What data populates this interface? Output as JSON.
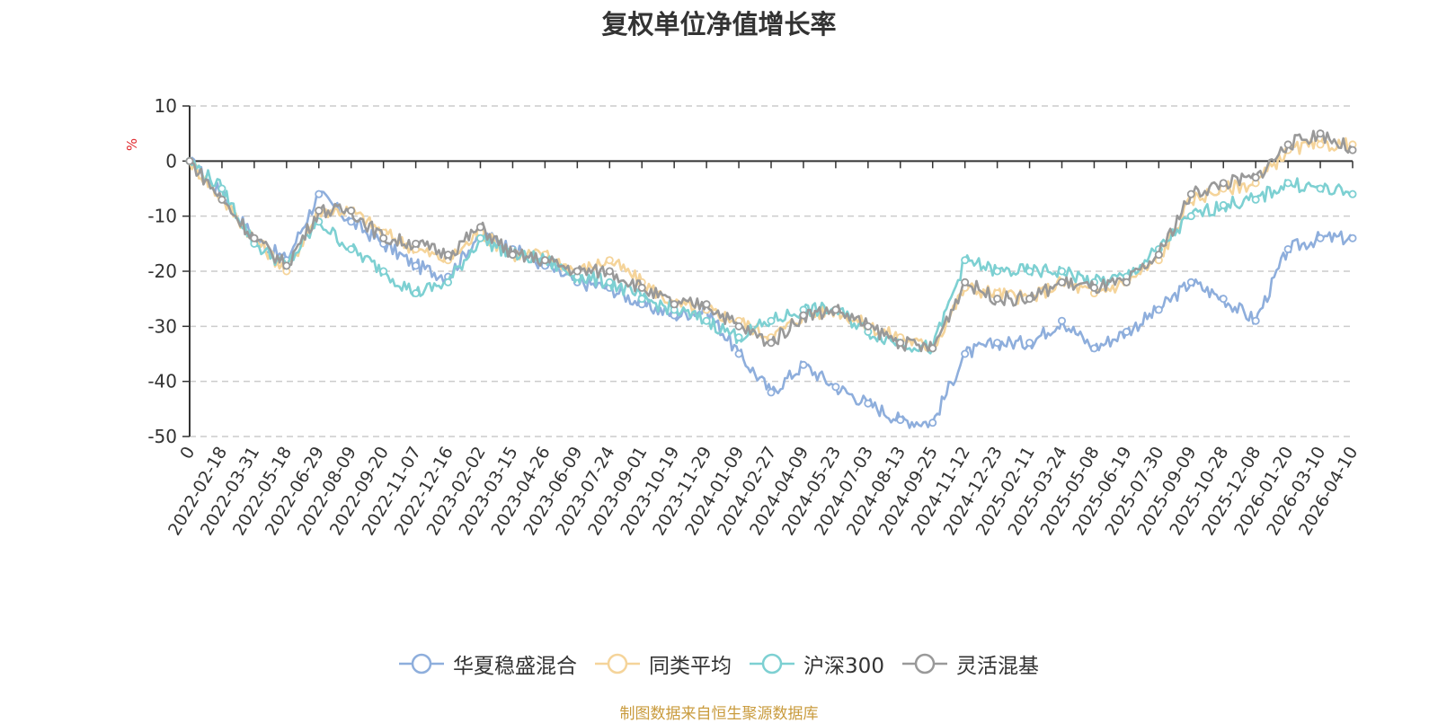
{
  "chart_data": {
    "type": "line",
    "title": "复权单位净值增长率",
    "ylabel": "%",
    "ylim": [
      -50,
      10
    ],
    "yticks": [
      10,
      0,
      -10,
      -20,
      -30,
      -40,
      -50
    ],
    "grid": true,
    "legend_position": "bottom",
    "categories": [
      "0",
      "2022-02-18",
      "2022-03-31",
      "2022-05-18",
      "2022-06-29",
      "2022-08-09",
      "2022-09-20",
      "2022-11-07",
      "2022-12-16",
      "2023-02-02",
      "2023-03-15",
      "2023-04-26",
      "2023-06-09",
      "2023-07-24",
      "2023-09-01",
      "2023-10-19",
      "2023-11-29",
      "2024-01-09",
      "2024-02-27",
      "2024-04-09",
      "2024-05-23",
      "2024-07-03",
      "2024-08-13",
      "2024-09-25",
      "2024-11-12",
      "2024-12-23",
      "2025-02-11",
      "2025-03-24",
      "2025-05-08",
      "2025-06-19",
      "2025-07-30",
      "2025-09-09",
      "2025-10-28",
      "2025-12-08",
      "2026-01-20",
      "2026-03-10",
      "2026-04-10"
    ],
    "series": [
      {
        "name": "华夏稳盛混合",
        "color": "#8eaedc",
        "values": [
          0,
          -6,
          -14,
          -18,
          -6,
          -11,
          -15,
          -19,
          -21,
          -13,
          -16,
          -19,
          -22,
          -23,
          -26,
          -28,
          -27,
          -35,
          -42,
          -37,
          -41,
          -44,
          -47,
          -47.5,
          -35,
          -33,
          -33,
          -29,
          -34,
          -31,
          -27,
          -22,
          -25,
          -29,
          -16,
          -14,
          -14
        ]
      },
      {
        "name": "同类平均",
        "color": "#f5d49a",
        "values": [
          0,
          -7,
          -14,
          -20,
          -9,
          -9,
          -13,
          -16,
          -18,
          -13,
          -17,
          -17,
          -20,
          -18,
          -22,
          -26,
          -27,
          -29,
          -32,
          -28,
          -27,
          -30,
          -32,
          -34,
          -23,
          -24,
          -25,
          -22,
          -24,
          -22,
          -18,
          -7,
          -5,
          -4,
          2,
          3,
          3
        ]
      },
      {
        "name": "沪深300",
        "color": "#7dd0d2",
        "values": [
          0,
          -5,
          -15,
          -19,
          -11,
          -16,
          -20,
          -24,
          -22,
          -14,
          -17,
          -18,
          -21,
          -22,
          -25,
          -27,
          -29,
          -32,
          -29,
          -27,
          -27,
          -31,
          -33,
          -34,
          -18,
          -20,
          -20,
          -20,
          -22,
          -21,
          -16,
          -10,
          -8,
          -7,
          -4,
          -5,
          -6
        ]
      },
      {
        "name": "灵活混基",
        "color": "#999999",
        "values": [
          0,
          -7,
          -14,
          -19,
          -9,
          -9,
          -14,
          -15,
          -17,
          -12,
          -17,
          -18,
          -20,
          -20,
          -23,
          -26,
          -26,
          -30,
          -33,
          -28,
          -27,
          -30,
          -33,
          -34,
          -22,
          -25,
          -25,
          -22,
          -23,
          -22,
          -17,
          -6,
          -4,
          -3,
          3,
          5,
          2
        ]
      }
    ]
  },
  "source_note": "制图数据来自恒生聚源数据库"
}
